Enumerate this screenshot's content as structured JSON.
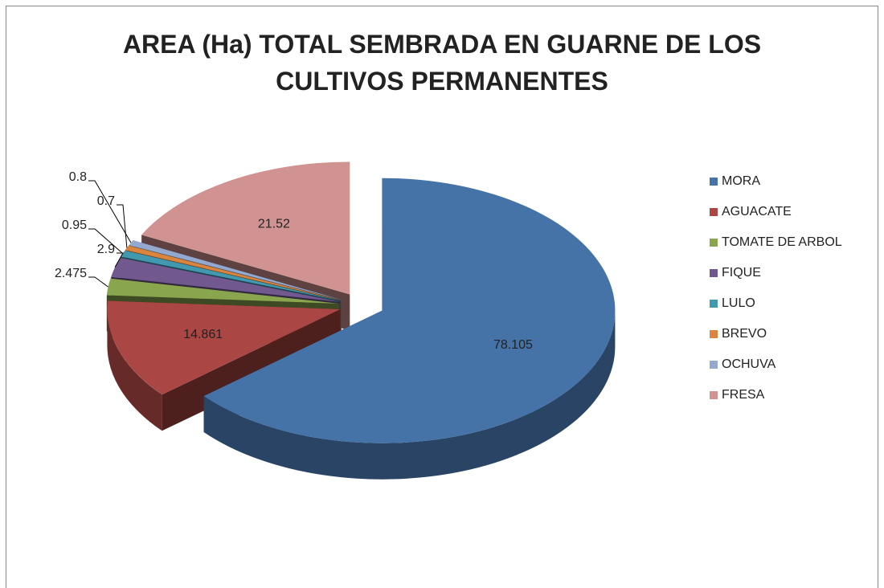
{
  "chart_data": {
    "type": "pie3d",
    "title": "AREA (Ha) TOTAL SEMBRADA EN GUARNE DE LOS CULTIVOS PERMANENTES",
    "categories": [
      "MORA",
      "AGUACATE",
      "TOMATE DE ARBOL",
      "FIQUE",
      "LULO",
      "BREVO",
      "OCHUVA",
      "FRESA"
    ],
    "values": [
      78.105,
      14.861,
      2.475,
      2.9,
      0.95,
      0.7,
      0.8,
      21.52
    ],
    "colors": [
      "#4572a7",
      "#aa4643",
      "#89a54e",
      "#71588f",
      "#4198af",
      "#db843d",
      "#93a9cf",
      "#d19392"
    ],
    "legend": "right"
  }
}
